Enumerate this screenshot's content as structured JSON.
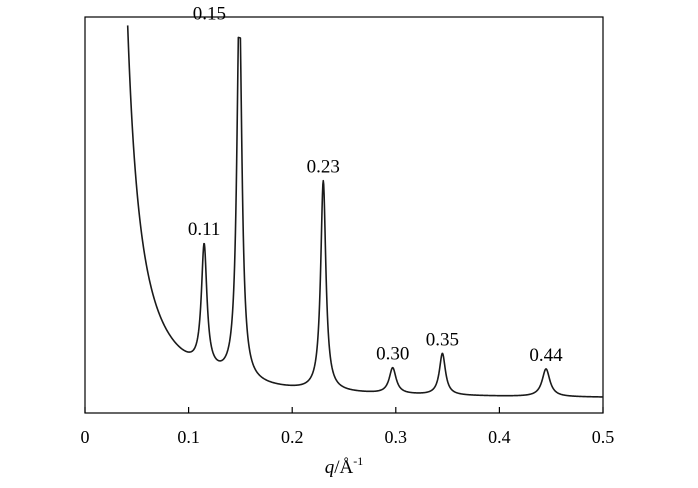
{
  "chart_data": {
    "type": "line",
    "title": "",
    "xlabel": "q/Å",
    "xlabel_parts": {
      "symbol": "q",
      "unit": "/Å",
      "exponent": "-1"
    },
    "ylabel": "",
    "xlim": [
      0,
      0.5
    ],
    "x_ticks": [
      0,
      0.1,
      0.2,
      0.3,
      0.4,
      0.5
    ],
    "x_tick_labels": [
      "0",
      "0.1",
      "0.2",
      "0.3",
      "0.4",
      "0.5"
    ],
    "y_ticks_shown": false,
    "grid": false,
    "legend": "none",
    "line_color": "#1a1a1a",
    "series": [
      {
        "baseline": 0.035,
        "decay": {
          "amplitude": 0.0014,
          "offset": 0.0195,
          "power": 1.7
        },
        "peaks": [
          {
            "q": 0.115,
            "height": 0.31,
            "width": 0.0032
          },
          {
            "q": 0.149,
            "height": 0.96,
            "width": 0.003
          },
          {
            "q": 0.23,
            "height": 0.53,
            "width": 0.003
          },
          {
            "q": 0.297,
            "height": 0.065,
            "width": 0.004
          },
          {
            "q": 0.345,
            "height": 0.105,
            "width": 0.0035
          },
          {
            "q": 0.445,
            "height": 0.07,
            "width": 0.0045
          }
        ]
      }
    ],
    "annotations": [
      {
        "text": "0.11",
        "q": 0.115
      },
      {
        "text": "0.15",
        "q": 0.149
      },
      {
        "text": "0.23",
        "q": 0.23
      },
      {
        "text": "0.30",
        "q": 0.297
      },
      {
        "text": "0.35",
        "q": 0.345
      },
      {
        "text": "0.44",
        "q": 0.445
      }
    ]
  }
}
